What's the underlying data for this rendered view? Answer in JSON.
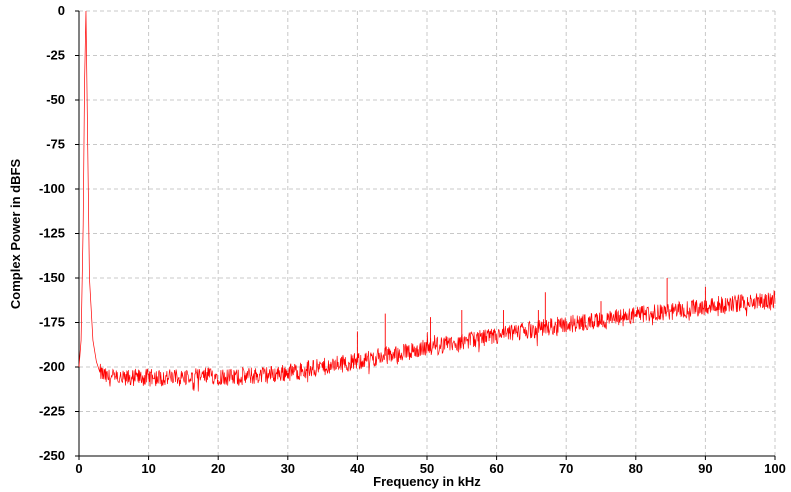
{
  "chart_data": {
    "type": "line",
    "title": "",
    "xlabel": "Frequency in kHz",
    "ylabel": "Complex Power in dBFS",
    "xlim": [
      0,
      100
    ],
    "ylim": [
      -250,
      0
    ],
    "x_ticks": [
      0,
      10,
      20,
      30,
      40,
      50,
      60,
      70,
      80,
      90,
      100
    ],
    "y_ticks": [
      0,
      -25,
      -50,
      -75,
      -100,
      -125,
      -150,
      -175,
      -200,
      -225,
      -250
    ],
    "grid": true,
    "legend": "none",
    "series": [
      {
        "color": "#ff0000",
        "x": [
          0,
          0.3,
          0.6,
          0.8,
          1.0,
          1.2,
          1.5,
          2,
          2.5,
          3,
          4,
          5,
          6,
          8,
          10,
          12,
          15,
          18,
          20,
          22,
          25,
          28,
          30,
          32,
          35,
          38,
          40,
          42,
          45,
          48,
          50,
          52,
          55,
          58,
          60,
          62,
          65,
          68,
          70,
          72,
          75,
          78,
          80,
          82,
          85,
          88,
          90,
          92,
          95,
          98,
          100
        ],
        "y": [
          -200,
          -185,
          -120,
          -40,
          0,
          -60,
          -150,
          -185,
          -197,
          -203,
          -206,
          -206,
          -207,
          -206,
          -206,
          -206,
          -206,
          -205,
          -205,
          -206,
          -205,
          -204,
          -203,
          -202,
          -200,
          -198,
          -197,
          -195,
          -193,
          -191,
          -189,
          -188,
          -186,
          -184,
          -183,
          -181,
          -179,
          -177,
          -176,
          -175,
          -174,
          -172,
          -171,
          -170,
          -169,
          -167,
          -166,
          -165,
          -164,
          -163,
          -162
        ]
      }
    ],
    "spurs": [
      {
        "x": 40,
        "y": -180
      },
      {
        "x": 44,
        "y": -170
      },
      {
        "x": 50.5,
        "y": -172
      },
      {
        "x": 55,
        "y": -168
      },
      {
        "x": 61,
        "y": -168
      },
      {
        "x": 66,
        "y": -168
      },
      {
        "x": 67,
        "y": -158
      },
      {
        "x": 75,
        "y": -163
      },
      {
        "x": 84.5,
        "y": -150
      },
      {
        "x": 90,
        "y": -155
      }
    ]
  }
}
